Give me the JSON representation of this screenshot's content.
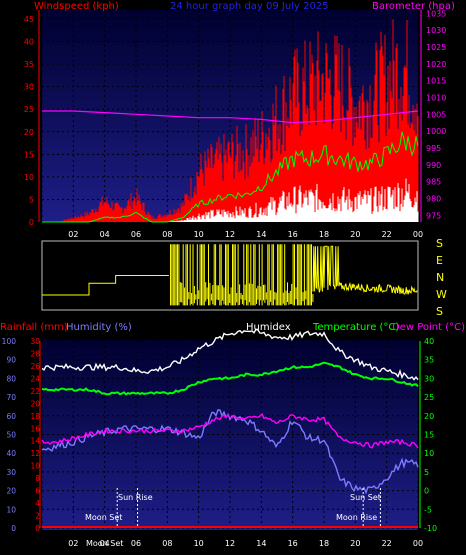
{
  "header": {
    "windspeed_label": "Windspeed (kph)",
    "title": "24 hour graph day  09 July 2025",
    "barometer_label": "Barometer (hpa)"
  },
  "direction_letters": [
    "S",
    "E",
    "N",
    "W",
    "S"
  ],
  "bottom_header": {
    "rainfall": "Rainfall (mm)",
    "humidity": "Humidity (%)",
    "humidex": "Humidex",
    "temperature": "Temperature (°C)",
    "dewpoint": "Dew Point (°C)"
  },
  "annotations": {
    "sun_rise": "Sun Rise",
    "sun_set": "Sun Set",
    "moon_set": "Moon Set",
    "moon_rise": "Moon Rise"
  },
  "colors": {
    "panel_top": "#000030",
    "panel_bottom": "#1e1e88",
    "wind": "#ff0000",
    "gust_avg": "#00ff00",
    "wind_low": "#ffffff",
    "barometer": "#ff00ff",
    "direction": "#ffff00",
    "humidity": "#7b7bff",
    "humidex": "#ffffff",
    "temperature": "#00ff00",
    "dewpoint": "#ff00ff",
    "rain": "#ff0000",
    "axis_left": "#ff0000",
    "axis_right": "#ff00ff",
    "axis_temp": "#00ff00",
    "axis_hum": "#7b7bff"
  },
  "chart_data": [
    {
      "type": "area",
      "panel": "wind",
      "x_ticks": [
        "02",
        "04",
        "06",
        "08",
        "10",
        "12",
        "14",
        "16",
        "18",
        "20",
        "22",
        "00"
      ],
      "ylim": [
        0,
        47
      ],
      "y_ticks": [
        0,
        5,
        10,
        15,
        20,
        25,
        30,
        35,
        40,
        45
      ],
      "y2lim": [
        973,
        1036
      ],
      "y2_ticks": [
        975,
        980,
        985,
        990,
        995,
        1000,
        1005,
        1010,
        1015,
        1020,
        1025,
        1030,
        1035
      ],
      "series": [
        {
          "key": "gust",
          "hours": [
            0,
            1,
            2,
            3,
            4,
            5,
            6,
            7,
            8,
            9,
            10,
            11,
            12,
            13,
            14,
            15,
            16,
            17,
            18,
            19,
            20,
            21,
            22,
            23,
            24
          ],
          "values": [
            0,
            0,
            1,
            2,
            5,
            3,
            6,
            1,
            2,
            4,
            12,
            14,
            16,
            17,
            20,
            25,
            30,
            32,
            34,
            33,
            28,
            30,
            34,
            38,
            30
          ]
        },
        {
          "key": "avg",
          "hours": [
            0,
            1,
            2,
            3,
            4,
            5,
            6,
            7,
            8,
            9,
            10,
            11,
            12,
            13,
            14,
            15,
            16,
            17,
            18,
            19,
            20,
            21,
            22,
            23,
            24
          ],
          "values": [
            0,
            0,
            0,
            0,
            1,
            1,
            2,
            0,
            0,
            1,
            4,
            5,
            6,
            6,
            8,
            11,
            14,
            14,
            15,
            14,
            13,
            13,
            15,
            18,
            17
          ]
        },
        {
          "key": "barometer",
          "hours": [
            0,
            2,
            4,
            6,
            8,
            10,
            12,
            14,
            16,
            18,
            20,
            22,
            24
          ],
          "values": [
            1006,
            1006,
            1005.5,
            1005,
            1004.5,
            1004,
            1004,
            1003.5,
            1002.5,
            1003,
            1004,
            1005,
            1006
          ]
        }
      ]
    },
    {
      "type": "scatter",
      "panel": "wind_direction",
      "x_ticks": [],
      "series": [
        {
          "key": "direction",
          "hours": [
            0,
            1,
            2,
            3,
            4,
            4.5,
            5,
            6,
            7,
            8,
            8.5,
            9,
            10,
            11,
            12,
            13,
            14,
            15,
            16,
            17,
            18,
            19,
            20,
            21,
            22,
            23,
            24
          ],
          "values": [
            0.8,
            0.8,
            0.8,
            0.8,
            0.8,
            0.6,
            0.6,
            0.6,
            0.6,
            0.6,
            0.5,
            0.5,
            0.5,
            0.5,
            0.5,
            0.5,
            0.5,
            0.5,
            0.5,
            0.5,
            0.5,
            0.55,
            0.55,
            0.5,
            0.5,
            0.45,
            0.45
          ]
        }
      ]
    },
    {
      "type": "line",
      "panel": "temperature_humidity",
      "x_ticks": [
        "02",
        "04",
        "06",
        "08",
        "10",
        "12",
        "14",
        "16",
        "18",
        "20",
        "22",
        "00"
      ],
      "y_rain_ticks": [
        0,
        2,
        4,
        6,
        8,
        10,
        12,
        14,
        16,
        18,
        20,
        22,
        24,
        26,
        28,
        30
      ],
      "y_hum_ticks": [
        10,
        20,
        30,
        40,
        50,
        60,
        70,
        80,
        90,
        100
      ],
      "y_temp_ticks": [
        -10,
        -5,
        0,
        5,
        10,
        15,
        20,
        25,
        30,
        35,
        40
      ],
      "ylim_temp": [
        -10,
        40
      ],
      "series": [
        {
          "key": "humidex",
          "hours": [
            0,
            1,
            2,
            3,
            4,
            5,
            6,
            7,
            8,
            9,
            10,
            11,
            12,
            13,
            14,
            15,
            16,
            17,
            18,
            19,
            20,
            21,
            22,
            23,
            24
          ],
          "values": [
            33,
            33,
            33,
            33,
            33,
            33,
            32,
            32,
            33,
            35,
            38,
            40,
            42,
            43,
            42,
            41,
            41,
            42,
            42,
            37,
            35,
            33,
            32,
            31,
            30
          ]
        },
        {
          "key": "temperature",
          "hours": [
            0,
            1,
            2,
            3,
            4,
            5,
            6,
            7,
            8,
            9,
            10,
            11,
            12,
            13,
            14,
            15,
            16,
            17,
            18,
            19,
            20,
            21,
            22,
            23,
            24
          ],
          "values": [
            27,
            27,
            27,
            27,
            26,
            26,
            26,
            26,
            26,
            27,
            29,
            30,
            30,
            31,
            31,
            32,
            33,
            33,
            34,
            33,
            31,
            30,
            30,
            29,
            28
          ]
        },
        {
          "key": "dewpoint",
          "hours": [
            0,
            1,
            2,
            3,
            4,
            5,
            6,
            7,
            8,
            9,
            10,
            11,
            12,
            13,
            14,
            15,
            16,
            17,
            18,
            19,
            20,
            21,
            22,
            23,
            24
          ],
          "values": [
            13,
            13,
            14,
            15,
            16,
            16,
            16,
            16,
            16,
            16,
            17,
            19,
            20,
            19,
            20,
            18,
            20,
            19,
            19,
            14,
            13,
            12,
            13,
            13,
            12
          ]
        },
        {
          "key": "humidity",
          "hours": [
            0,
            1,
            2,
            3,
            4,
            5,
            6,
            7,
            8,
            9,
            10,
            11,
            12,
            13,
            14,
            15,
            16,
            17,
            18,
            19,
            20,
            21,
            22,
            23,
            24
          ],
          "values": [
            42,
            44,
            46,
            49,
            51,
            53,
            53,
            53,
            53,
            51,
            48,
            62,
            60,
            58,
            52,
            43,
            58,
            48,
            47,
            26,
            21,
            20,
            27,
            35,
            34
          ]
        },
        {
          "key": "rain",
          "hours": [
            0,
            24
          ],
          "values": [
            0,
            0
          ]
        }
      ],
      "events": {
        "sun_rise": 6.1,
        "sun_set": 21.6,
        "moon_set": 4.8,
        "moon_rise": 20.5
      }
    }
  ]
}
